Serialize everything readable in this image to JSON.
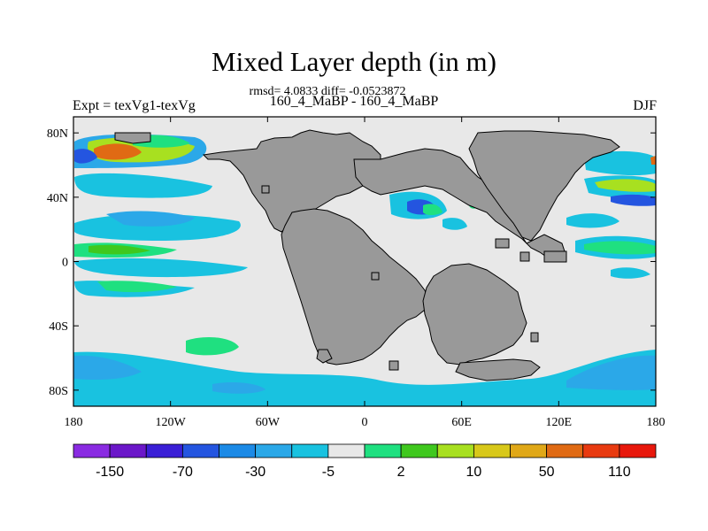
{
  "header": {
    "title": "Mixed Layer depth (in m)",
    "stats": "rmsd= 4.0833 diff= -0.0523872",
    "experiment": "Expt = texVg1-texVg",
    "runs": "160_4_MaBP - 160_4_MaBP",
    "season": "DJF"
  },
  "axes": {
    "x_ticks": [
      {
        "value": -180,
        "label": "180"
      },
      {
        "value": -120,
        "label": "120W"
      },
      {
        "value": -60,
        "label": "60W"
      },
      {
        "value": 0,
        "label": "0"
      },
      {
        "value": 60,
        "label": "60E"
      },
      {
        "value": 120,
        "label": "120E"
      },
      {
        "value": 180,
        "label": "180"
      }
    ],
    "y_ticks": [
      {
        "value": 80,
        "label": "80N"
      },
      {
        "value": 40,
        "label": "40N"
      },
      {
        "value": 0,
        "label": "0"
      },
      {
        "value": -40,
        "label": "40S"
      },
      {
        "value": -80,
        "label": "80S"
      }
    ],
    "lon_range": [
      -180,
      180
    ],
    "lat_range": [
      -90,
      90
    ]
  },
  "colorbar": {
    "colors": [
      "#8a2be2",
      "#6b17c9",
      "#3a1fd6",
      "#2455e0",
      "#1c8ae6",
      "#2ba8e8",
      "#19c2e0",
      "#e8e8e8",
      "#1fe080",
      "#3fc81e",
      "#a8e020",
      "#d8c81a",
      "#e0a818",
      "#e06a14",
      "#e83a10",
      "#e8180c"
    ],
    "labels": [
      {
        "index": 1,
        "text": "-150"
      },
      {
        "index": 3,
        "text": "-70"
      },
      {
        "index": 5,
        "text": "-30"
      },
      {
        "index": 7,
        "text": "-5"
      },
      {
        "index": 9,
        "text": "2"
      },
      {
        "index": 11,
        "text": "10"
      },
      {
        "index": 13,
        "text": "50"
      },
      {
        "index": 15,
        "text": "110"
      }
    ]
  },
  "map": {
    "ocean_color": "#e8e8e8",
    "land_color": "#999999",
    "land_edge_color": "#000000"
  }
}
